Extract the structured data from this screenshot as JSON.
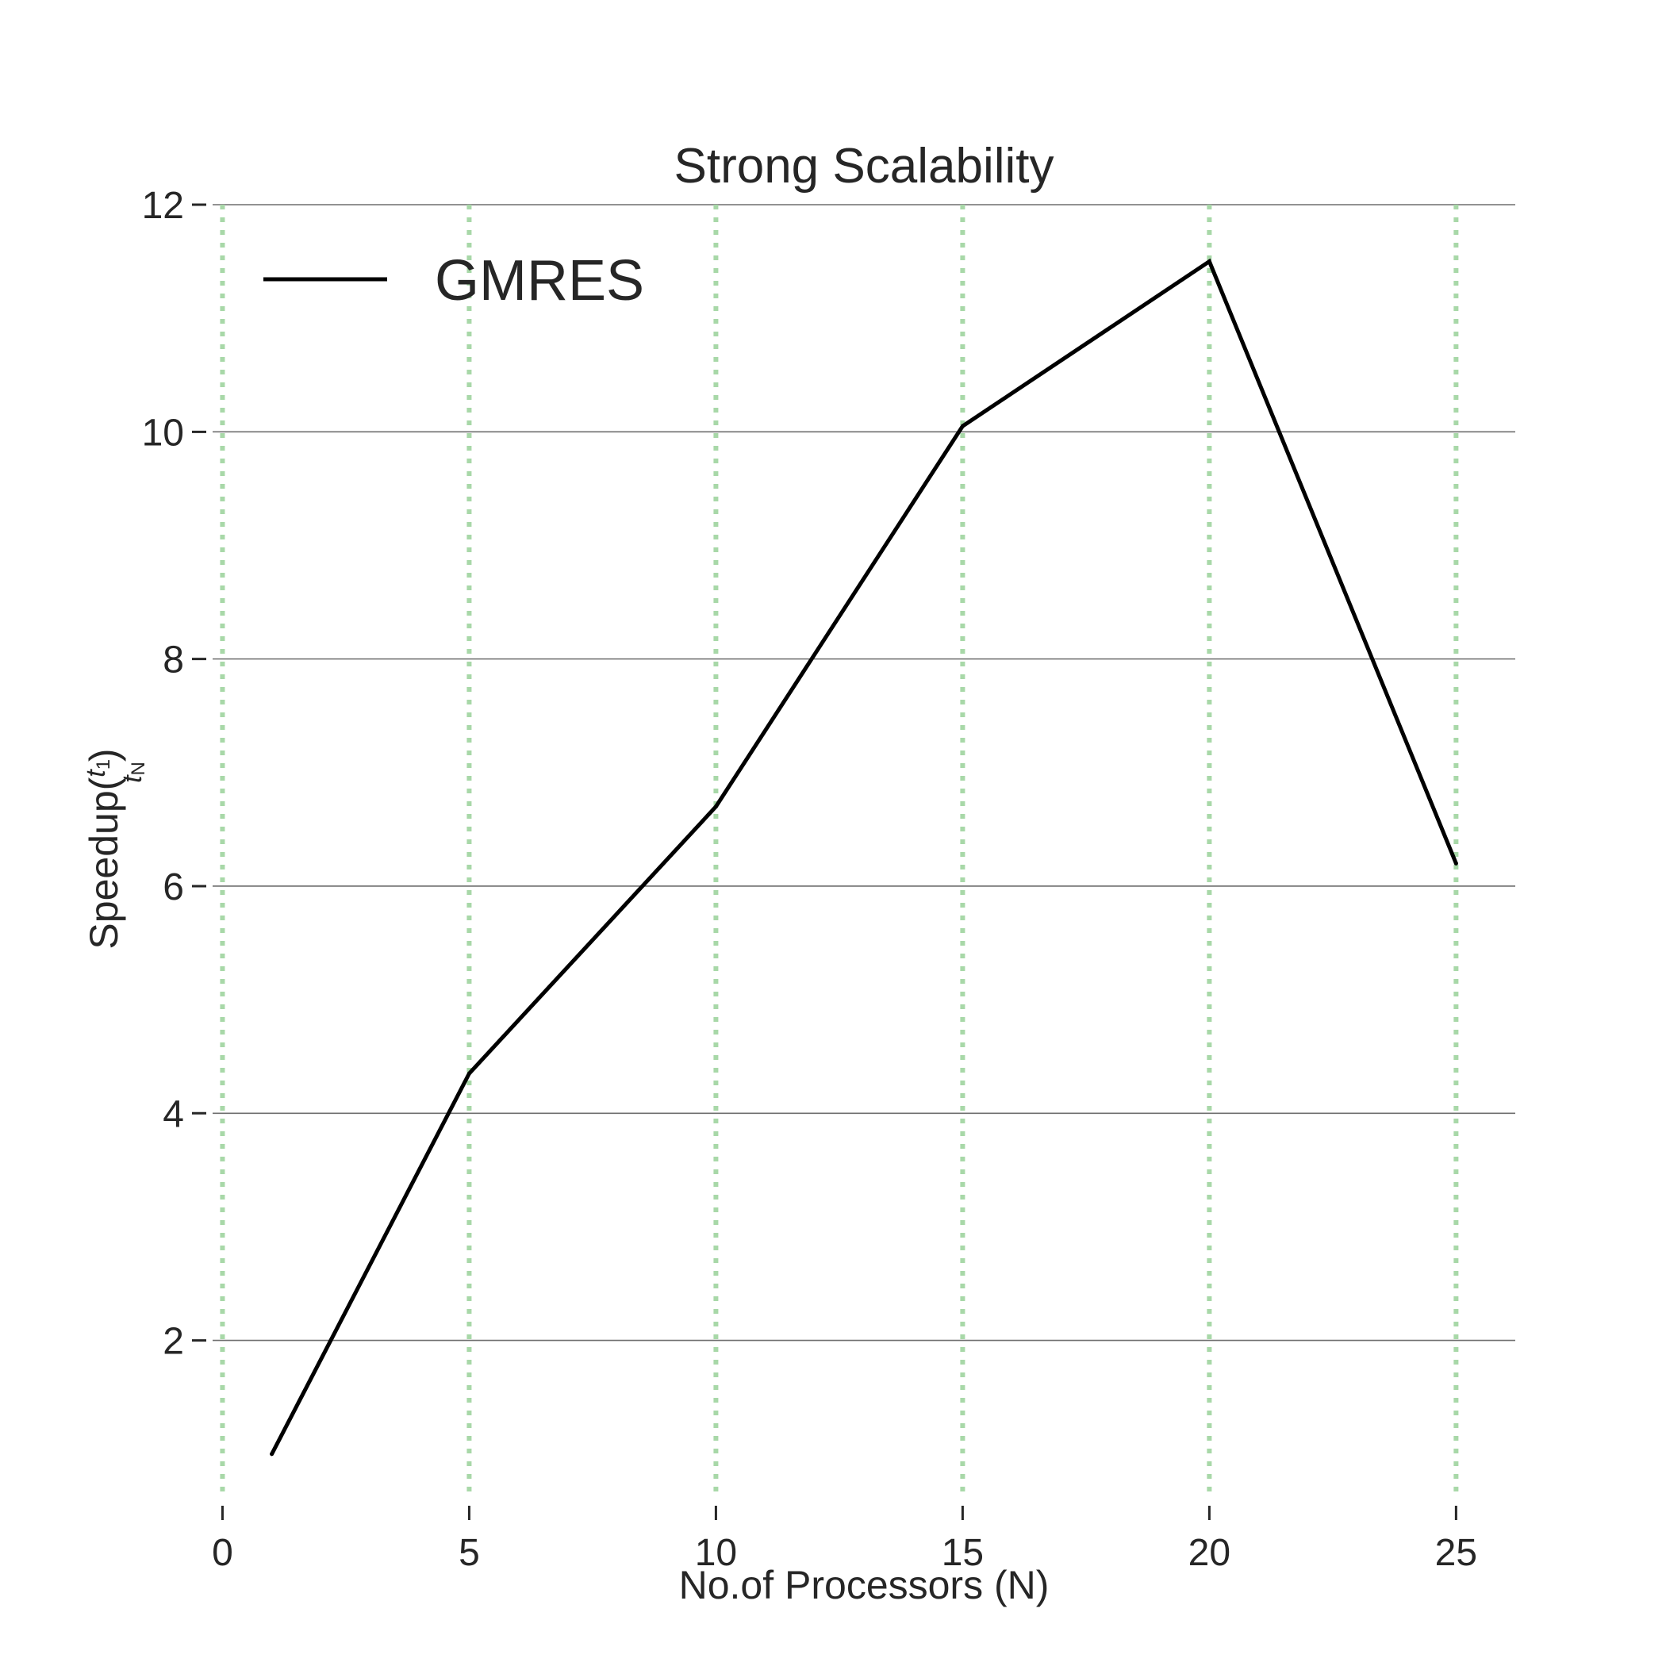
{
  "chart_data": {
    "type": "line",
    "title": "Strong Scalability",
    "xlabel": "No.of Processors (N)",
    "ylabel": "Speedup(t1/tN)",
    "ylabel_display": {
      "prefix": "Speedup(",
      "num": "t",
      "num_sub": "1",
      "den": "t",
      "den_sub": "N",
      "suffix": ")"
    },
    "xlim": [
      -0.2,
      26.2
    ],
    "ylim": [
      0.6,
      12.0
    ],
    "xticks": [
      0,
      5,
      10,
      15,
      20,
      25
    ],
    "yticks": [
      2,
      4,
      6,
      8,
      10,
      12
    ],
    "grid": {
      "x": "dotted",
      "y": "solid"
    },
    "legend": {
      "placement": "top-left",
      "entries": [
        "GMRES"
      ]
    },
    "series": [
      {
        "name": "GMRES",
        "color": "#000000",
        "x": [
          1,
          5,
          10,
          15,
          20,
          25
        ],
        "y": [
          1.0,
          4.35,
          6.7,
          10.05,
          11.5,
          6.2
        ]
      }
    ]
  },
  "colors": {
    "xgrid": "#a8d8a8",
    "ygrid": "#6e6e6e",
    "text": "#262626",
    "line": "#000000"
  }
}
